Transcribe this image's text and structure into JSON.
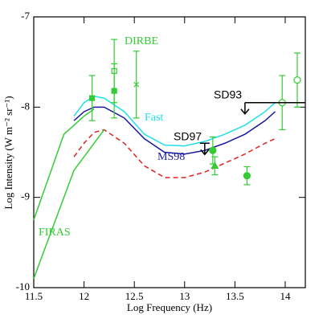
{
  "chart_data": {
    "type": "line",
    "xlabel": "Log Frequency (Hz)",
    "ylabel": "Log Intensity (W m⁻² sr⁻¹)",
    "xlim": [
      11.5,
      14.2
    ],
    "ylim": [
      -10,
      -7
    ],
    "xticks": [
      11.5,
      12,
      12.5,
      13,
      13.5,
      14
    ],
    "yticks": [
      -10,
      -9,
      -8,
      -7
    ],
    "annotations": [
      "DIRBE",
      "Fast",
      "MS98",
      "SD97",
      "SD93",
      "FIRAS"
    ],
    "series": [
      {
        "name": "Fast",
        "color": "#22e0e8",
        "dash": false,
        "x": [
          11.9,
          12.0,
          12.1,
          12.2,
          12.4,
          12.6,
          12.8,
          13.0,
          13.2,
          13.4,
          13.6,
          13.8,
          13.9
        ],
        "values": [
          -8.1,
          -7.95,
          -7.88,
          -7.9,
          -8.05,
          -8.3,
          -8.42,
          -8.43,
          -8.38,
          -8.3,
          -8.2,
          -8.05,
          -7.95
        ]
      },
      {
        "name": "MS98",
        "color": "#1a1aa0",
        "dash": false,
        "x": [
          11.9,
          12.0,
          12.1,
          12.2,
          12.4,
          12.6,
          12.8,
          13.0,
          13.2,
          13.4,
          13.6,
          13.8,
          13.9
        ],
        "values": [
          -8.15,
          -8.05,
          -8.0,
          -8.0,
          -8.12,
          -8.35,
          -8.5,
          -8.52,
          -8.48,
          -8.4,
          -8.3,
          -8.15,
          -8.05
        ]
      },
      {
        "color": "#dd2222",
        "dash": true,
        "x": [
          11.9,
          12.0,
          12.1,
          12.2,
          12.4,
          12.6,
          12.8,
          13.0,
          13.2,
          13.4,
          13.6,
          13.8,
          13.9
        ],
        "values": [
          -8.55,
          -8.4,
          -8.28,
          -8.25,
          -8.4,
          -8.65,
          -8.78,
          -8.78,
          -8.72,
          -8.62,
          -8.52,
          -8.4,
          -8.35
        ]
      },
      {
        "name": "FIRAS",
        "color": "#33cc33",
        "dash": false,
        "x": [
          11.5,
          11.8,
          12.0,
          12.1
        ],
        "values": [
          -9.25,
          -8.3,
          -8.1,
          -8.02
        ]
      },
      {
        "name": "FIRAS",
        "color": "#33cc33",
        "dash": false,
        "x": [
          11.5,
          11.9,
          12.2
        ],
        "values": [
          -9.9,
          -8.7,
          -8.25
        ]
      }
    ],
    "points": {
      "color": "#33cc33",
      "x": [
        12.08,
        12.3,
        12.3,
        12.52,
        13.28,
        13.3,
        13.62,
        13.97,
        14.12
      ],
      "values": [
        -7.9,
        -7.6,
        -7.82,
        -7.75,
        -8.48,
        -8.65,
        -8.76,
        -7.95,
        -7.7
      ],
      "yerr": [
        0.25,
        0.35,
        0.3,
        0.37,
        0.15,
        0.1,
        0.1,
        0.3,
        0.3
      ],
      "markers": [
        "square",
        "open-square",
        "square",
        "cross",
        "circle",
        "triangle",
        "circle",
        "open-circle",
        "open-circle"
      ]
    },
    "upper_limits": {
      "color": "#000000",
      "x": [
        13.6,
        13.2
      ],
      "x_to": [
        14.2,
        null
      ],
      "values": [
        -7.95,
        -8.4
      ]
    }
  }
}
